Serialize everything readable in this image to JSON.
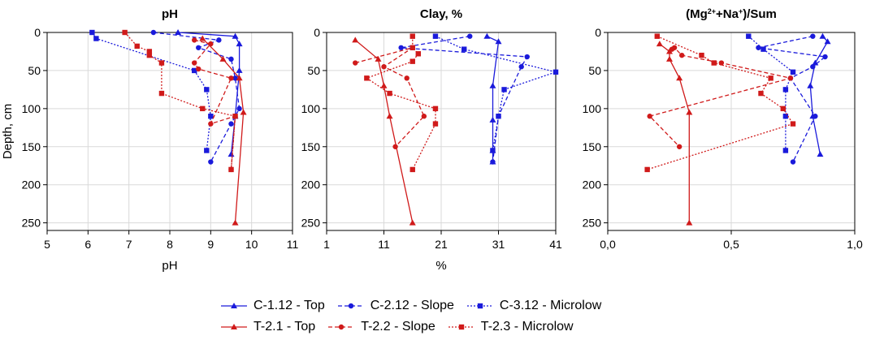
{
  "chart_data": [
    {
      "type": "line",
      "title": "pH",
      "title_html": "pH",
      "xlabel": "pH",
      "ylabel": "Depth, cm",
      "xlim": [
        5,
        11
      ],
      "ylim": [
        0,
        260
      ],
      "xticks": [
        "5",
        "6",
        "7",
        "8",
        "9",
        "10",
        "11"
      ],
      "xtick_values": [
        5,
        6,
        7,
        8,
        9,
        10,
        11
      ],
      "yticks": [
        "0",
        "50",
        "100",
        "150",
        "200",
        "250"
      ],
      "ytick_values": [
        0,
        50,
        100,
        150,
        200,
        250
      ],
      "series": [
        {
          "name": "C-1.12 - Top",
          "points": [
            [
              8.2,
              0
            ],
            [
              9.6,
              5
            ],
            [
              9.7,
              15
            ],
            [
              9.7,
              50
            ],
            [
              9.6,
              110
            ],
            [
              9.5,
              160
            ]
          ]
        },
        {
          "name": "C-2.12 - Slope",
          "points": [
            [
              7.6,
              0
            ],
            [
              9.2,
              10
            ],
            [
              8.7,
              20
            ],
            [
              9.5,
              35
            ],
            [
              9.6,
              60
            ],
            [
              9.7,
              100
            ],
            [
              9.5,
              120
            ],
            [
              9.0,
              170
            ]
          ]
        },
        {
          "name": "C-3.12 - Microlow",
          "points": [
            [
              6.1,
              0
            ],
            [
              6.2,
              8
            ],
            [
              8.6,
              50
            ],
            [
              8.9,
              75
            ],
            [
              9.0,
              110
            ],
            [
              8.9,
              155
            ]
          ]
        },
        {
          "name": "T-2.1 - Top",
          "points": [
            [
              8.8,
              8
            ],
            [
              9.3,
              35
            ],
            [
              9.7,
              60
            ],
            [
              9.8,
              105
            ],
            [
              9.6,
              250
            ]
          ]
        },
        {
          "name": "T-2.2 - Slope",
          "points": [
            [
              8.6,
              10
            ],
            [
              9.0,
              15
            ],
            [
              8.6,
              40
            ],
            [
              8.7,
              48
            ],
            [
              9.5,
              60
            ],
            [
              9.0,
              120
            ],
            [
              9.6,
              110
            ],
            [
              9.5,
              180
            ]
          ]
        },
        {
          "name": "T-2.3 - Microlow",
          "points": [
            [
              6.9,
              0
            ],
            [
              7.2,
              18
            ],
            [
              7.5,
              25
            ],
            [
              7.5,
              30
            ],
            [
              7.8,
              40
            ],
            [
              7.8,
              80
            ],
            [
              8.8,
              100
            ],
            [
              9.6,
              110
            ],
            [
              9.5,
              180
            ]
          ]
        }
      ]
    },
    {
      "type": "line",
      "title": "Clay, %",
      "title_html": "Clay, %",
      "xlabel": "%",
      "ylabel": "",
      "xlim": [
        1,
        41
      ],
      "ylim": [
        0,
        260
      ],
      "xticks": [
        "1",
        "11",
        "21",
        "31",
        "41"
      ],
      "xtick_values": [
        1,
        11,
        21,
        31,
        41
      ],
      "yticks": [
        "0",
        "50",
        "100",
        "150",
        "200",
        "250"
      ],
      "ytick_values": [
        0,
        50,
        100,
        150,
        200,
        250
      ],
      "series": [
        {
          "name": "C-1.12 - Top",
          "points": [
            [
              29,
              5
            ],
            [
              31,
              12
            ],
            [
              30,
              70
            ],
            [
              30,
              115
            ],
            [
              30,
              155
            ],
            [
              30,
              170
            ]
          ]
        },
        {
          "name": "C-2.12 - Slope",
          "points": [
            [
              26,
              5
            ],
            [
              14,
              20
            ],
            [
              36,
              32
            ],
            [
              35,
              45
            ],
            [
              31,
              110
            ],
            [
              30,
              170
            ]
          ]
        },
        {
          "name": "C-3.12 - Microlow",
          "points": [
            [
              20,
              5
            ],
            [
              25,
              22
            ],
            [
              41,
              52
            ],
            [
              32,
              75
            ],
            [
              31,
              110
            ],
            [
              30,
              155
            ]
          ]
        },
        {
          "name": "T-2.1 - Top",
          "points": [
            [
              6,
              10
            ],
            [
              10,
              35
            ],
            [
              11,
              70
            ],
            [
              12,
              110
            ],
            [
              16,
              250
            ]
          ]
        },
        {
          "name": "T-2.2 - Slope",
          "points": [
            [
              6,
              40
            ],
            [
              16,
              20
            ],
            [
              11,
              45
            ],
            [
              15,
              60
            ],
            [
              18,
              110
            ],
            [
              13,
              150
            ]
          ]
        },
        {
          "name": "T-2.3 - Microlow",
          "points": [
            [
              16,
              5
            ],
            [
              16,
              20
            ],
            [
              17,
              28
            ],
            [
              16,
              38
            ],
            [
              8,
              60
            ],
            [
              12,
              80
            ],
            [
              20,
              100
            ],
            [
              20,
              120
            ],
            [
              16,
              180
            ]
          ]
        }
      ]
    },
    {
      "type": "line",
      "title": "(Mg²⁺+Na⁺)/Sum",
      "title_html": "(Mg<tspan baseline-shift=\"super\" font-size=\"9\">2+</tspan>+Na<tspan baseline-shift=\"super\" font-size=\"9\">+</tspan>)/Sum",
      "xlabel": "",
      "ylabel": "",
      "xlim": [
        0.0,
        1.0
      ],
      "ylim": [
        0,
        260
      ],
      "xticks": [
        "0,0",
        "0,5",
        "1,0"
      ],
      "xtick_values": [
        0.0,
        0.5,
        1.0
      ],
      "yticks": [
        "0",
        "50",
        "100",
        "150",
        "200",
        "250"
      ],
      "ytick_values": [
        0,
        50,
        100,
        150,
        200,
        250
      ],
      "series": [
        {
          "name": "C-1.12 - Top",
          "points": [
            [
              0.87,
              5
            ],
            [
              0.89,
              12
            ],
            [
              0.84,
              40
            ],
            [
              0.82,
              70
            ],
            [
              0.83,
              110
            ],
            [
              0.86,
              160
            ]
          ]
        },
        {
          "name": "C-2.12 - Slope",
          "points": [
            [
              0.83,
              5
            ],
            [
              0.61,
              20
            ],
            [
              0.88,
              32
            ],
            [
              0.83,
              45
            ],
            [
              0.74,
              60
            ],
            [
              0.84,
              110
            ],
            [
              0.75,
              170
            ]
          ]
        },
        {
          "name": "C-3.12 - Microlow",
          "points": [
            [
              0.57,
              5
            ],
            [
              0.63,
              22
            ],
            [
              0.75,
              52
            ],
            [
              0.72,
              75
            ],
            [
              0.72,
              110
            ],
            [
              0.72,
              155
            ]
          ]
        },
        {
          "name": "T-2.1 - Top",
          "points": [
            [
              0.21,
              15
            ],
            [
              0.25,
              25
            ],
            [
              0.25,
              35
            ],
            [
              0.29,
              60
            ],
            [
              0.33,
              105
            ],
            [
              0.33,
              250
            ]
          ]
        },
        {
          "name": "T-2.2 - Slope",
          "points": [
            [
              0.26,
              22
            ],
            [
              0.27,
              20
            ],
            [
              0.3,
              30
            ],
            [
              0.46,
              40
            ],
            [
              0.74,
              60
            ],
            [
              0.17,
              110
            ],
            [
              0.29,
              150
            ]
          ]
        },
        {
          "name": "T-2.3 - Microlow",
          "points": [
            [
              0.2,
              5
            ],
            [
              0.38,
              30
            ],
            [
              0.43,
              40
            ],
            [
              0.66,
              60
            ],
            [
              0.62,
              80
            ],
            [
              0.71,
              100
            ],
            [
              0.75,
              120
            ],
            [
              0.16,
              180
            ]
          ]
        }
      ]
    }
  ],
  "legend": [
    {
      "label": "C-1.12 - Top",
      "color": "#1a1adb",
      "marker": "triangle",
      "dash": "solid"
    },
    {
      "label": "C-2.12 - Slope",
      "color": "#1a1adb",
      "marker": "circle",
      "dash": "dashed"
    },
    {
      "label": "C-3.12 - Microlow",
      "color": "#1a1adb",
      "marker": "square",
      "dash": "dotted"
    },
    {
      "label": "T-2.1 - Top",
      "color": "#d01a1a",
      "marker": "triangle",
      "dash": "solid"
    },
    {
      "label": "T-2.2 - Slope",
      "color": "#d01a1a",
      "marker": "circle",
      "dash": "dashed"
    },
    {
      "label": "T-2.3 - Microlow",
      "color": "#d01a1a",
      "marker": "square",
      "dash": "dotted"
    }
  ]
}
